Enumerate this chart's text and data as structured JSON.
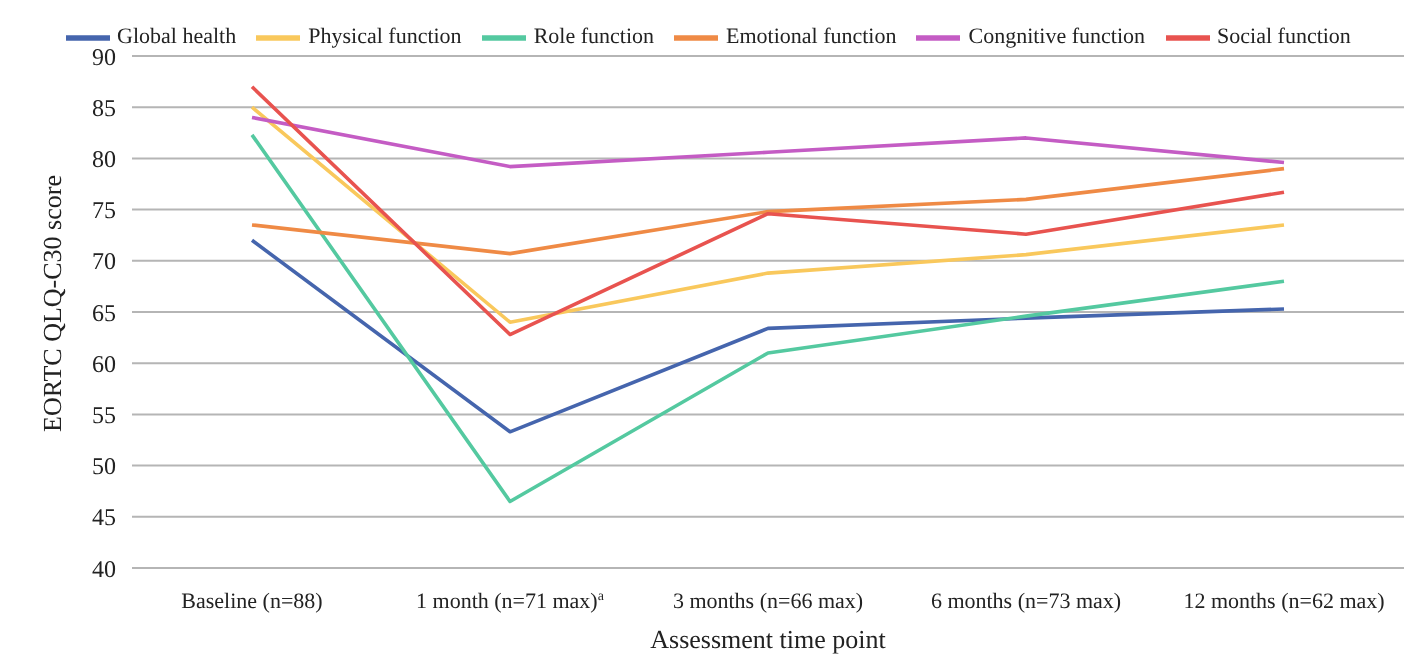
{
  "chart_data": {
    "type": "line",
    "xlabel": "Assessment time point",
    "ylabel": "EORTC QLQ-C30 score",
    "categories": [
      "Baseline (n=88)",
      "1 month (n=71 max)$^{a}$",
      "3 months (n=66 max)",
      "6 months (n=73 max)",
      "12 months (n=62 max)"
    ],
    "series": [
      {
        "name": "Global health",
        "color": "#4565ad",
        "values": [
          72,
          53.3,
          63.4,
          64.4,
          65.3
        ]
      },
      {
        "name": "Physical function",
        "color": "#f9c85c",
        "values": [
          85,
          64,
          68.8,
          70.6,
          73.5
        ]
      },
      {
        "name": "Role function",
        "color": "#54c9a0",
        "values": [
          82.3,
          46.5,
          61,
          64.6,
          68
        ]
      },
      {
        "name": "Emotional function",
        "color": "#ef8a45",
        "values": [
          73.5,
          70.7,
          74.8,
          76,
          79
        ]
      },
      {
        "name": "Congnitive function",
        "color": "#c45cc4",
        "values": [
          84,
          79.2,
          80.6,
          82,
          79.6
        ]
      },
      {
        "name": "Social function",
        "color": "#e8534f",
        "values": [
          87,
          62.8,
          74.6,
          72.6,
          76.7
        ]
      }
    ],
    "ylim": [
      40,
      90
    ],
    "yticks": [
      40,
      45,
      50,
      55,
      60,
      65,
      70,
      75,
      80,
      85,
      90
    ],
    "grid": "y",
    "legend": "top",
    "marker": "none",
    "line_style": "solid"
  }
}
